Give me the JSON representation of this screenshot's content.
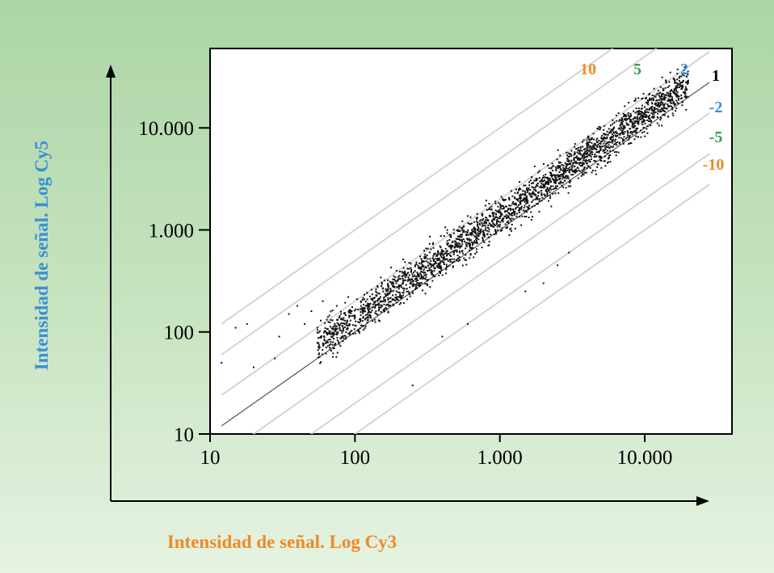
{
  "chart_data": {
    "type": "scatter",
    "title": "",
    "xlabel": "Intensidad de señal. Log Cy3",
    "ylabel": "Intensidad de señal. Log Cy5",
    "x_scale": "log",
    "y_scale": "log",
    "xlim": [
      10,
      40000
    ],
    "ylim": [
      10,
      60000
    ],
    "x_ticks": [
      10,
      100,
      1000,
      10000
    ],
    "x_tick_labels": [
      "10",
      "100",
      "1.000",
      "10.000"
    ],
    "y_ticks": [
      10,
      100,
      1000,
      10000
    ],
    "y_tick_labels": [
      "10",
      "100",
      "1.000",
      "10.000"
    ],
    "grid": false,
    "ratio_lines": [
      {
        "label": "10",
        "ratio": 10,
        "color": "#ef8a26"
      },
      {
        "label": "5",
        "ratio": 5,
        "color": "#2fa24d"
      },
      {
        "label": "2",
        "ratio": 2,
        "color": "#3a8fd4"
      },
      {
        "label": "1",
        "ratio": 1,
        "color": "#000000"
      },
      {
        "label": "-2",
        "ratio": 0.5,
        "color": "#3a8fd4"
      },
      {
        "label": "-5",
        "ratio": 0.2,
        "color": "#2fa24d"
      },
      {
        "label": "-10",
        "ratio": 0.1,
        "color": "#ef8a26"
      }
    ],
    "series": [
      {
        "points": [
          [
            12,
            50
          ],
          [
            15,
            110
          ],
          [
            18,
            120
          ],
          [
            20,
            45
          ],
          [
            28,
            55
          ],
          [
            30,
            90
          ],
          [
            35,
            150
          ],
          [
            40,
            180
          ],
          [
            45,
            120
          ],
          [
            50,
            160
          ],
          [
            55,
            110
          ],
          [
            60,
            200
          ],
          [
            65,
            140
          ],
          [
            70,
            130
          ],
          [
            75,
            180
          ],
          [
            80,
            150
          ],
          [
            85,
            120
          ],
          [
            90,
            220
          ],
          [
            95,
            160
          ],
          [
            100,
            140
          ],
          [
            110,
            200
          ],
          [
            120,
            180
          ],
          [
            130,
            260
          ],
          [
            140,
            230
          ],
          [
            150,
            200
          ],
          [
            160,
            320
          ],
          [
            170,
            280
          ],
          [
            180,
            250
          ],
          [
            200,
            330
          ],
          [
            220,
            380
          ],
          [
            240,
            300
          ],
          [
            260,
            450
          ],
          [
            280,
            420
          ],
          [
            300,
            380
          ],
          [
            330,
            520
          ],
          [
            360,
            480
          ],
          [
            400,
            600
          ],
          [
            430,
            560
          ],
          [
            460,
            700
          ],
          [
            500,
            820
          ],
          [
            550,
            760
          ],
          [
            600,
            950
          ],
          [
            650,
            900
          ],
          [
            700,
            1100
          ],
          [
            800,
            1250
          ],
          [
            900,
            1400
          ],
          [
            1000,
            1300
          ],
          [
            1100,
            1700
          ],
          [
            1300,
            2000
          ],
          [
            1500,
            2300
          ],
          [
            1700,
            2600
          ],
          [
            2000,
            3000
          ],
          [
            2300,
            3400
          ],
          [
            2600,
            4100
          ],
          [
            3000,
            4800
          ],
          [
            3500,
            5600
          ],
          [
            4000,
            6400
          ],
          [
            4500,
            7000
          ],
          [
            5000,
            8000
          ],
          [
            6000,
            9500
          ],
          [
            7000,
            11000
          ],
          [
            8000,
            13000
          ],
          [
            9000,
            14500
          ],
          [
            10000,
            16000
          ],
          [
            12000,
            18500
          ],
          [
            14000,
            21000
          ],
          [
            16000,
            22000
          ],
          [
            18000,
            24000
          ],
          [
            400,
            90
          ],
          [
            600,
            120
          ],
          [
            1500,
            250
          ],
          [
            2000,
            300
          ],
          [
            2500,
            450
          ],
          [
            250,
            30
          ],
          [
            3000,
            600
          ]
        ]
      }
    ]
  }
}
